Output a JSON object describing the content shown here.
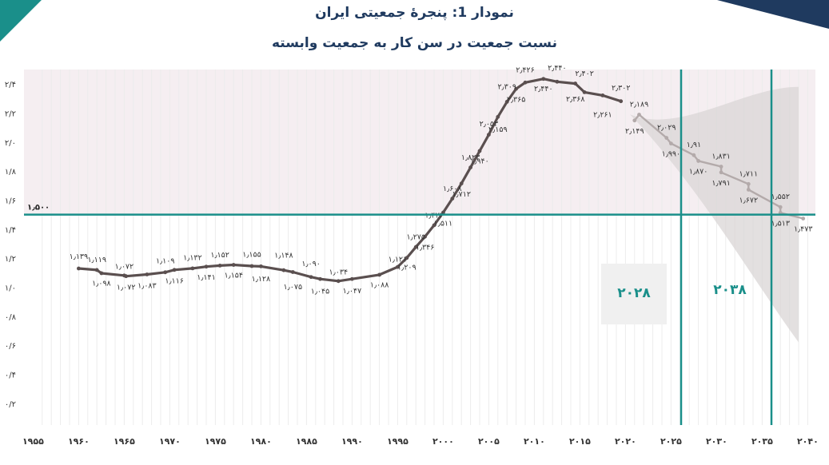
{
  "chart_data": {
    "type": "line",
    "title": "نمودار 1: پنجرۀ جمعیتی ایران",
    "subtitle": "نسبت جمعیت در سن کار به جمعیت وابسته",
    "x_tick_labels": [
      "۱۹۵۵",
      "۱۹۶۰",
      "۱۹۶۵",
      "۱۹۷۰",
      "۱۹۷۵",
      "۱۹۸۰",
      "۱۹۸۵",
      "۱۹۹۰",
      "۱۹۹۵",
      "۲۰۰۰",
      "۲۰۰۵",
      "۲۰۱۰",
      "۲۰۱۵",
      "۲۰۲۰",
      "۲۰۲۵",
      "۲۰۳۰",
      "۲۰۳۵",
      "۲۰۴۰"
    ],
    "x_ticks": [
      1955,
      1960,
      1965,
      1970,
      1975,
      1980,
      1985,
      1990,
      1995,
      2000,
      2005,
      2010,
      2015,
      2020,
      2025,
      2030,
      2035,
      2040
    ],
    "y_tick_labels": [
      "۰/۲",
      "۰/۴",
      "۰/۶",
      "۰/۸",
      "۱/۰",
      "۱/۲",
      "۱/۴",
      "۱/۶",
      "۱/۸",
      "۲/۰",
      "۲/۲",
      "۲/۴"
    ],
    "y_ticks": [
      0.2,
      0.4,
      0.6,
      0.8,
      1.0,
      1.2,
      1.4,
      1.6,
      1.8,
      2.0,
      2.2,
      2.4
    ],
    "xlim": [
      1954,
      2040
    ],
    "ylim": [
      0.05,
      2.5
    ],
    "shaded_y_range": [
      1.5,
      2.5
    ],
    "threshold": {
      "value": 1.5,
      "label": "۱٫۵۰۰"
    },
    "window_start": {
      "year": 2028,
      "label": "۲۰۲۸"
    },
    "window_end": {
      "year": 2038,
      "label": "۲۰۳۸"
    },
    "grid": true,
    "series": [
      {
        "style": "historical",
        "color": "#5a4f4f",
        "points": [
          {
            "x": 1960,
            "y": 1.139,
            "label": "۱٫۱۳۹",
            "pos": "above"
          },
          {
            "x": 1962,
            "y": 1.119,
            "label": "۱٫۱۱۹",
            "pos": "above"
          },
          {
            "x": 1962.5,
            "y": 1.098,
            "label": "۱٫۰۹۸",
            "pos": "below"
          },
          {
            "x": 1965,
            "y": 1.072,
            "label": "۱٫۰۷۲",
            "pos": "above"
          },
          {
            "x": 1965.2,
            "y": 1.072,
            "label": "۱٫۰۷۲",
            "pos": "below"
          },
          {
            "x": 1967.5,
            "y": 1.083,
            "label": "۱٫۰۸۳",
            "pos": "below"
          },
          {
            "x": 1969.5,
            "y": 1.109,
            "label": "۱٫۱۰۹",
            "pos": "above"
          },
          {
            "x": 1970.5,
            "y": 1.116,
            "label": "۱٫۱۱۶",
            "pos": "below"
          },
          {
            "x": 1972.5,
            "y": 1.132,
            "label": "۱٫۱۳۲",
            "pos": "above"
          },
          {
            "x": 1974,
            "y": 1.141,
            "label": "۱٫۱۴۱",
            "pos": "below"
          },
          {
            "x": 1975.5,
            "y": 1.152,
            "label": "۱٫۱۵۲",
            "pos": "above"
          },
          {
            "x": 1977,
            "y": 1.154,
            "label": "۱٫۱۵۴",
            "pos": "below"
          },
          {
            "x": 1979,
            "y": 1.155,
            "label": "۱٫۱۵۵",
            "pos": "above"
          },
          {
            "x": 1980,
            "y": 1.128,
            "label": "۱٫۱۲۸",
            "pos": "below"
          },
          {
            "x": 1982.5,
            "y": 1.148,
            "label": "۱٫۱۴۸",
            "pos": "above"
          },
          {
            "x": 1983.5,
            "y": 1.075,
            "label": "۱٫۰۷۵",
            "pos": "below"
          },
          {
            "x": 1985.5,
            "y": 1.09,
            "label": "۱٫۰۹۰",
            "pos": "above"
          },
          {
            "x": 1986.5,
            "y": 1.045,
            "label": "۱٫۰۴۵",
            "pos": "below"
          },
          {
            "x": 1988.5,
            "y": 1.034,
            "label": "۱٫۰۳۴",
            "pos": "above"
          },
          {
            "x": 1990,
            "y": 1.047,
            "label": "۱٫۰۴۷",
            "pos": "below"
          },
          {
            "x": 1993,
            "y": 1.088,
            "label": "۱٫۰۸۸",
            "pos": "below"
          },
          {
            "x": 1995,
            "y": 1.121,
            "label": "۱٫۱۲۱",
            "pos": "above"
          },
          {
            "x": 1996,
            "y": 1.209,
            "label": "۱٫۲۰۹",
            "pos": "below"
          },
          {
            "x": 1997,
            "y": 1.275,
            "label": "۱٫۲۷۵",
            "pos": "above"
          },
          {
            "x": 1998,
            "y": 1.346,
            "label": "۱٫۳۴۶",
            "pos": "below"
          },
          {
            "x": 1999,
            "y": 1.424,
            "label": "۱٫۴۲۴",
            "pos": "above"
          },
          {
            "x": 2000,
            "y": 1.511,
            "label": "۱٫۵۱۱",
            "pos": "below"
          },
          {
            "x": 2001,
            "y": 1.608,
            "label": "۱٫۶۰۸",
            "pos": "above"
          },
          {
            "x": 2002,
            "y": 1.712,
            "label": "۱٫۷۱۲",
            "pos": "below"
          },
          {
            "x": 2003,
            "y": 1.823,
            "label": "۱٫۸۲۳",
            "pos": "above"
          },
          {
            "x": 2004,
            "y": 1.94,
            "label": "۱٫۹۴۰",
            "pos": "below"
          },
          {
            "x": 2005,
            "y": 2.053,
            "label": "۲٫۰۵۳",
            "pos": "above"
          },
          {
            "x": 2006,
            "y": 2.159,
            "label": "۲٫۱۵۹",
            "pos": "below"
          },
          {
            "x": 2007,
            "y": 2.309,
            "label": "۲٫۳۰۹",
            "pos": "above"
          },
          {
            "x": 2008,
            "y": 2.365,
            "label": "۲٫۳۶۵",
            "pos": "below"
          },
          {
            "x": 2009,
            "y": 2.426,
            "label": "۲٫۴۲۶",
            "pos": "above"
          },
          {
            "x": 2011,
            "y": 2.44,
            "label": "۲٫۴۴۰",
            "pos": "below"
          },
          {
            "x": 2012.5,
            "y": 2.44,
            "label": "۲٫۴۴۰",
            "pos": "above"
          },
          {
            "x": 2014.5,
            "y": 2.368,
            "label": "۲٫۳۶۸",
            "pos": "below"
          },
          {
            "x": 2015.5,
            "y": 2.402,
            "label": "۲٫۴۰۲",
            "pos": "above"
          },
          {
            "x": 2017.5,
            "y": 2.261,
            "label": "۲٫۲۶۱",
            "pos": "below"
          },
          {
            "x": 2019.5,
            "y": 2.302,
            "label": "۲٫۳۰۲",
            "pos": "above"
          }
        ]
      },
      {
        "style": "projection",
        "color": "#b3aaaa",
        "points": [
          {
            "x": 2021.5,
            "y": 2.189,
            "label": "۲٫۱۸۹",
            "pos": "above"
          },
          {
            "x": 2021,
            "y": 2.149,
            "label": "۲٫۱۴۹",
            "pos": "below"
          },
          {
            "x": 2024.5,
            "y": 2.029,
            "label": "۲٫۰۲۹",
            "pos": "above"
          },
          {
            "x": 2025,
            "y": 1.99,
            "label": "۱٫۹۹۰",
            "pos": "below"
          },
          {
            "x": 2027.5,
            "y": 1.91,
            "label": "۱٫۹۱",
            "pos": "above"
          },
          {
            "x": 2028,
            "y": 1.87,
            "label": "۱٫۸۷۰",
            "pos": "below"
          },
          {
            "x": 2030.5,
            "y": 1.831,
            "label": "۱٫۸۳۱",
            "pos": "above"
          },
          {
            "x": 2030.5,
            "y": 1.791,
            "label": "۱٫۷۹۱",
            "pos": "below"
          },
          {
            "x": 2033.5,
            "y": 1.711,
            "label": "۱٫۷۱۱",
            "pos": "above"
          },
          {
            "x": 2033.5,
            "y": 1.672,
            "label": "۱٫۶۷۲",
            "pos": "below"
          },
          {
            "x": 2037,
            "y": 1.552,
            "label": "۱٫۵۵۲",
            "pos": "above"
          },
          {
            "x": 2037,
            "y": 1.513,
            "label": "۱٫۵۱۳",
            "pos": "below"
          },
          {
            "x": 2039.5,
            "y": 1.473,
            "label": "۱٫۴۷۳",
            "pos": "below"
          }
        ]
      }
    ]
  }
}
